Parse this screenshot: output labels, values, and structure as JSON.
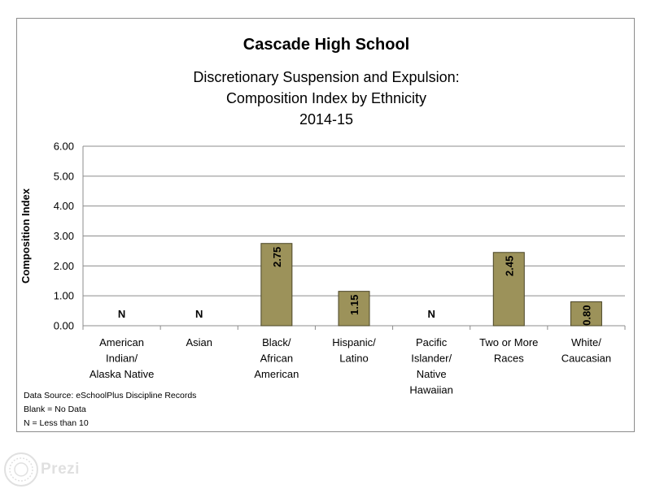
{
  "chart_data": {
    "type": "bar",
    "title": "Cascade  High School",
    "subtitle_lines": [
      "Discretionary Suspension and Expulsion:",
      "Composition Index by Ethnicity",
      "2014-15"
    ],
    "ylabel": "Composition Index",
    "xlabel": "",
    "ylim": [
      0,
      6
    ],
    "yticks": [
      "0.00",
      "1.00",
      "2.00",
      "3.00",
      "4.00",
      "5.00",
      "6.00"
    ],
    "grid": true,
    "categories": [
      [
        "American",
        "Indian/",
        "Alaska Native"
      ],
      [
        "Asian"
      ],
      [
        "Black/",
        "African",
        "American"
      ],
      [
        "Hispanic/",
        "Latino"
      ],
      [
        "Pacific",
        "Islander/",
        "Native",
        "Hawaiian"
      ],
      [
        "Two or More",
        "Races"
      ],
      [
        "White/",
        "Caucasian"
      ]
    ],
    "values": [
      null,
      null,
      2.75,
      1.15,
      null,
      2.45,
      0.8
    ],
    "data_labels": [
      "N",
      "N",
      "2.75",
      "1.15",
      "N",
      "2.45",
      "0.80"
    ],
    "bar_color": "#9c925a",
    "bar_edge_color": "#4a4526",
    "notes": [
      "Data Source: eSchoolPlus Discipline Records",
      "Blank = No Data",
      "N = Less than 10"
    ]
  },
  "watermark": {
    "text": "Prezi"
  }
}
